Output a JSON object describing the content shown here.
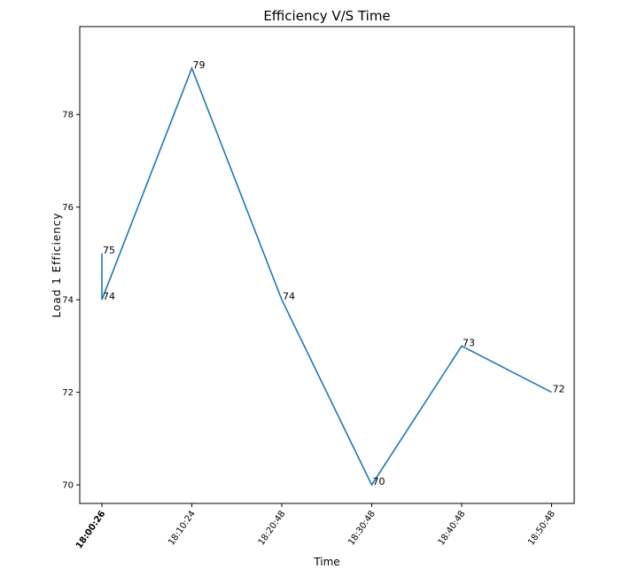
{
  "chart_data": {
    "type": "line",
    "title": "Efficiency V/S Time",
    "xlabel": "Time",
    "ylabel": "Load 1 Efficiency",
    "x": [
      "18:00:26",
      "18:00:26",
      "18:10:24",
      "18:20:48",
      "18:30:48",
      "18:40:48",
      "18:50:48"
    ],
    "xticks": [
      "18:00:26",
      "18:10:24",
      "18:20:48",
      "18:30:48",
      "18:40:48",
      "18:50:48"
    ],
    "yticks": [
      70,
      72,
      74,
      76,
      78
    ],
    "ylim": [
      69.6,
      79.9
    ],
    "grid": false,
    "series": [
      {
        "values": [
          75,
          74,
          79,
          74,
          70,
          73,
          72
        ],
        "color": "#1f77b4"
      }
    ],
    "data_labels": [
      "75",
      "74",
      "79",
      "74",
      "70",
      "73",
      "72"
    ]
  }
}
